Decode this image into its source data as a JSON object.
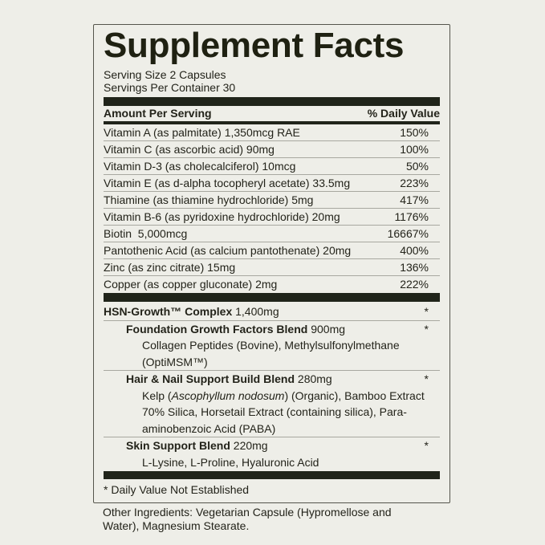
{
  "title": "Supplement Facts",
  "serving_size": "Serving Size 2 Capsules",
  "servings_per_container": "Servings Per Container 30",
  "header": {
    "amount": "Amount Per Serving",
    "dv": "% Daily Value"
  },
  "nutrients": [
    {
      "name": "Vitamin A (as palmitate) 1,350mcg RAE",
      "dv": "150%"
    },
    {
      "name": "Vitamin C (as ascorbic acid) 90mg",
      "dv": "100%"
    },
    {
      "name": "Vitamin D-3 (as cholecalciferol) 10mcg",
      "dv": "50%"
    },
    {
      "name": "Vitamin E (as d-alpha tocopheryl acetate) 33.5mg",
      "dv": "223%"
    },
    {
      "name": "Thiamine (as thiamine hydrochloride) 5mg",
      "dv": "417%"
    },
    {
      "name": "Vitamin B-6 (as pyridoxine hydrochloride) 20mg",
      "dv": "1176%"
    },
    {
      "name": "Biotin  5,000mcg",
      "dv": "16667%"
    },
    {
      "name": "Pantothenic Acid (as calcium pantothenate) 20mg",
      "dv": "400%"
    },
    {
      "name": "Zinc (as zinc citrate) 15mg",
      "dv": "136%"
    },
    {
      "name": "Copper (as copper gluconate) 2mg",
      "dv": "222%"
    }
  ],
  "complex": {
    "name": "HSN-Growth™ Complex",
    "amount": " 1,400mg",
    "dv": "*"
  },
  "blends": [
    {
      "name": "Foundation Growth Factors Blend",
      "amount": " 900mg",
      "dv": "*",
      "ingredients": "Collagen Peptides (Bovine), Methylsulfonylmethane (OptiMSM™)"
    },
    {
      "name": "Hair & Nail Support Build Blend",
      "amount": " 280mg",
      "dv": "*",
      "ing_pre": "Kelp (",
      "ing_italic": "Ascophyllum nodosum",
      "ing_post": ") (Organic), Bamboo Extract 70% Silica, Horsetail Extract (containing silica), Para-aminobenzoic Acid (PABA)"
    },
    {
      "name": "Skin Support Blend",
      "amount": " 220mg",
      "dv": "*",
      "ingredients": "L-Lysine, L-Proline, Hyaluronic Acid"
    }
  ],
  "footnote": "* Daily Value Not Established",
  "other_ingredients": "Other Ingredients: Vegetarian Capsule (Hypromellose and Water), Magnesium Stearate."
}
